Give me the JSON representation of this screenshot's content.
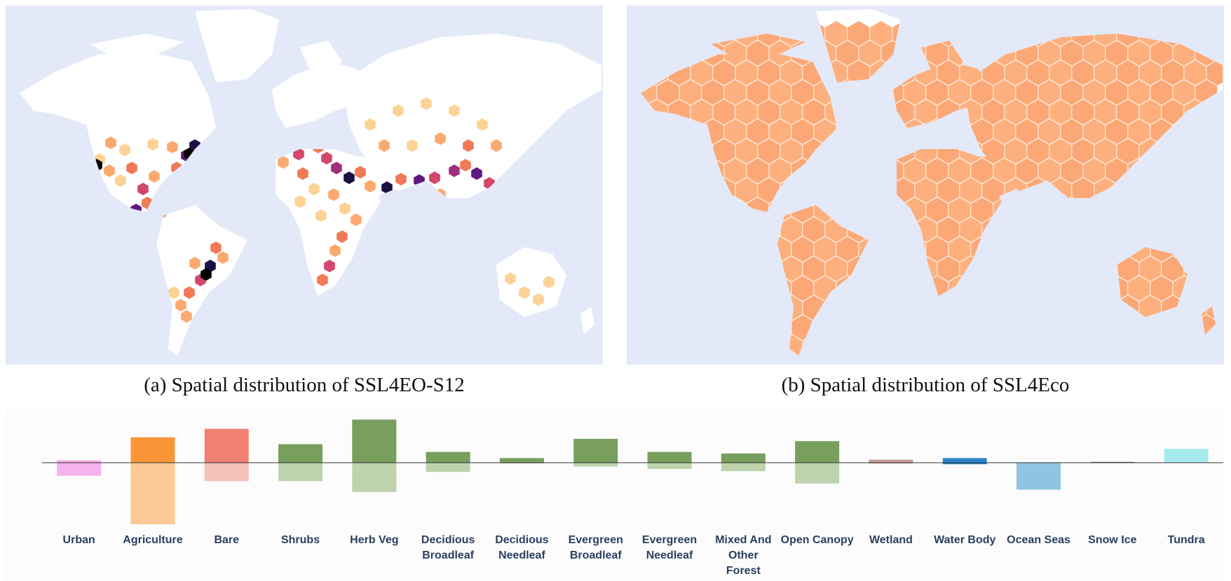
{
  "maps": [
    {
      "id": "a",
      "caption": "(a) Spatial distribution of SSL4EO-S12",
      "palette": [
        "#fdd295",
        "#fba96f",
        "#f07a58",
        "#d4466a",
        "#a02f7f",
        "#5f187f",
        "#1b1044",
        "#000004"
      ]
    },
    {
      "id": "b",
      "caption": "(b) Spatial distribution of SSL4Eco",
      "palette": [
        "#fdb07d",
        "#fba876"
      ]
    }
  ],
  "colors": {
    "ocean": "#e3e9f8",
    "land": "#ffffff"
  },
  "chart_data": {
    "type": "bar",
    "categories": [
      "Urban",
      "Agriculture",
      "Bare",
      "Shrubs",
      "Herb Veg",
      "Decidious Broadleaf",
      "Decidious Needleaf",
      "Evergreen Broadleaf",
      "Evergreen Needleaf",
      "Mixed And Other Forest",
      "Open Canopy",
      "Wetland",
      "Water Body",
      "Ocean Seas",
      "Snow Ice",
      "Tundra"
    ],
    "series": [
      {
        "direction": "up",
        "values": [
          3,
          33,
          44,
          24,
          56,
          14,
          6,
          31,
          14,
          12,
          28,
          4,
          6,
          -1,
          1,
          18
        ]
      },
      {
        "direction": "down",
        "values": [
          17,
          80,
          24,
          24,
          38,
          12,
          1,
          5,
          8,
          11,
          27,
          1,
          2,
          35,
          0,
          0
        ]
      }
    ],
    "colors_up": [
      "#f6a8e0",
      "#fb9638",
      "#ef8073",
      "#789f5e",
      "#789f5e",
      "#789f5e",
      "#789f5e",
      "#789f5e",
      "#789f5e",
      "#789f5e",
      "#789f5e",
      "#c49a95",
      "#2d85c7",
      "#8fc4e3",
      "#555555",
      "#a7ebee"
    ],
    "colors_down": [
      "#f6b3ef",
      "#fdca95",
      "#f5bfba",
      "#bdd3ad",
      "#bdd3ad",
      "#bdd3ad",
      "#bdd3ad",
      "#bdd3ad",
      "#bdd3ad",
      "#bdd3ad",
      "#bdd3ad",
      "#c49a95",
      "#2d85c7",
      "#8fc4e3",
      "#555555",
      "#a7ebee"
    ],
    "xlabel": "",
    "ylabel": "",
    "grid": false
  }
}
